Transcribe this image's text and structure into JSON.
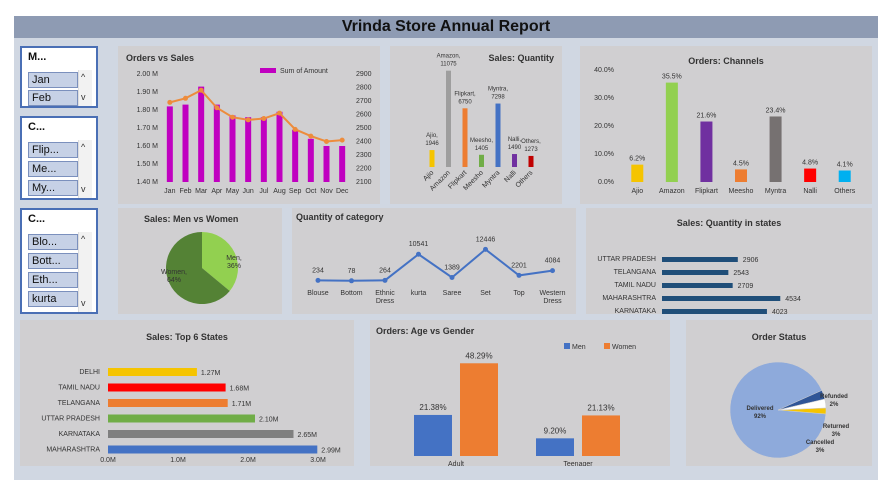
{
  "title": "Vrinda Store Annual Report",
  "slicers": [
    {
      "header": "M...",
      "items": [
        "Jan",
        "Feb"
      ]
    },
    {
      "header": "C...",
      "items": [
        "Flip...",
        "Me...",
        "My..."
      ]
    },
    {
      "header": "C...",
      "items": [
        "Blo...",
        "Bott...",
        "Eth...",
        "kurta"
      ]
    }
  ],
  "chart_data": [
    {
      "id": "orders_vs_sales",
      "type": "bar",
      "title": "Orders vs Sales",
      "legend": "Sum of Amount",
      "legend_position": "top-right",
      "categories": [
        "Jan",
        "Feb",
        "Mar",
        "Apr",
        "May",
        "Jun",
        "Jul",
        "Aug",
        "Sep",
        "Oct",
        "Nov",
        "Dec"
      ],
      "series": [
        {
          "name": "Sum of Amount",
          "type": "bar",
          "values": [
            1.82,
            1.83,
            1.93,
            1.83,
            1.77,
            1.76,
            1.76,
            1.79,
            1.69,
            1.64,
            1.6,
            1.6
          ]
        },
        {
          "type": "line",
          "values": [
            2690,
            2720,
            2780,
            2650,
            2580,
            2560,
            2570,
            2610,
            2490,
            2440,
            2400,
            2410
          ]
        }
      ],
      "y_ticks": [
        "2.00 M",
        "1.90 M",
        "1.80 M",
        "1.70 M",
        "1.60 M",
        "1.50 M",
        "1.40 M"
      ],
      "ylim": [
        1.4,
        2.0
      ],
      "y2_ticks": [
        "2900",
        "2800",
        "2700",
        "2600",
        "2500",
        "2400",
        "2300",
        "2200",
        "2100"
      ],
      "y2lim": [
        2100,
        2900
      ],
      "colors": {
        "bar": "#c000c0",
        "line": "#ed8c3c"
      }
    },
    {
      "id": "sales_quantity",
      "type": "bar",
      "title": "Sales: Quantity",
      "categories": [
        "Ajio",
        "Amazon",
        "Flipkart",
        "Meesho",
        "Myntra",
        "Nalli",
        "Others"
      ],
      "values": [
        1946,
        11075,
        6750,
        1405,
        7298,
        1490,
        1273
      ],
      "labels": [
        [
          "Ajio,",
          "1946"
        ],
        [
          "Amazon,",
          "11075"
        ],
        [
          "Flipkart,",
          "6750"
        ],
        [
          "Meesho,",
          "1405"
        ],
        [
          "Myntra,",
          "7298"
        ],
        [
          "Nalli,",
          "1490"
        ],
        [
          "Others,",
          "1273"
        ]
      ],
      "ylim": [
        0,
        11500
      ],
      "colors": [
        "#f5c400",
        "#9e9e9e",
        "#ed7d31",
        "#70ad47",
        "#4472c4",
        "#7030a0",
        "#c00000"
      ]
    },
    {
      "id": "orders_channels",
      "type": "bar",
      "title": "Orders: Channels",
      "categories": [
        "Ajio",
        "Amazon",
        "Flipkart",
        "Meesho",
        "Myntra",
        "Nalli",
        "Others"
      ],
      "values": [
        6.2,
        35.5,
        21.6,
        4.5,
        23.4,
        4.8,
        4.1
      ],
      "labels": [
        "6.2%",
        "35.5%",
        "21.6%",
        "4.5%",
        "23.4%",
        "4.8%",
        "4.1%"
      ],
      "y_ticks": [
        "40.0%",
        "30.0%",
        "20.0%",
        "10.0%",
        "0.0%"
      ],
      "ylim": [
        0,
        40
      ],
      "colors": [
        "#f5c400",
        "#92d050",
        "#7030a0",
        "#ed7d31",
        "#767171",
        "#ff0000",
        "#00b0f0"
      ]
    },
    {
      "id": "men_vs_women",
      "type": "pie",
      "title": "Sales: Men vs Women",
      "categories": [
        "Men",
        "Women"
      ],
      "values": [
        36,
        64
      ],
      "labels": [
        [
          "Men,",
          "36%"
        ],
        [
          "Women,",
          "64%"
        ]
      ],
      "colors": [
        "#92d050",
        "#548235"
      ]
    },
    {
      "id": "quantity_category",
      "type": "line",
      "title": "Quantity of category",
      "categories": [
        [
          "Blouse"
        ],
        [
          "Bottom"
        ],
        [
          "Ethnic",
          "Dress"
        ],
        [
          "kurta"
        ],
        [
          "Saree"
        ],
        [
          "Set"
        ],
        [
          "Top"
        ],
        [
          "Western",
          "Dress"
        ]
      ],
      "values": [
        234,
        78,
        264,
        10541,
        1389,
        12446,
        2201,
        4084
      ],
      "labels": [
        "234",
        "78",
        "264",
        "10541",
        "1389",
        "12446",
        "2201",
        "4084"
      ],
      "ylim": [
        0,
        13000
      ],
      "colors": {
        "line": "#4472c4"
      }
    },
    {
      "id": "quantity_states",
      "type": "bar",
      "orientation": "horizontal",
      "title": "Sales: Quantity in states",
      "categories": [
        "UTTAR PRADESH",
        "TELANGANA",
        "TAMIL NADU",
        "MAHARASHTRA",
        "KARNATAKA"
      ],
      "values": [
        2906,
        2543,
        2709,
        4534,
        4023
      ],
      "labels": [
        "2906",
        "2543",
        "2709",
        "4534",
        "4023"
      ],
      "xlim": [
        0,
        4600
      ],
      "colors": {
        "bar": "#1f4e79"
      }
    },
    {
      "id": "top_states",
      "type": "bar",
      "orientation": "horizontal",
      "title": "Sales: Top 6 States",
      "categories": [
        "DELHI",
        "TAMIL NADU",
        "TELANGANA",
        "UTTAR PRADESH",
        "KARNATAKA",
        "MAHARASHTRA"
      ],
      "values": [
        1.27,
        1.68,
        1.71,
        2.1,
        2.65,
        2.99
      ],
      "labels": [
        "1.27M",
        "1.68M",
        "1.71M",
        "2.10M",
        "2.65M",
        "2.99M"
      ],
      "x_ticks": [
        "0.0M",
        "1.0M",
        "2.0M",
        "3.0M"
      ],
      "xlim": [
        0,
        3.0
      ],
      "colors": [
        "#f5c400",
        "#ff0000",
        "#ed7d31",
        "#70ad47",
        "#7f7f7f",
        "#4472c4"
      ]
    },
    {
      "id": "age_gender",
      "type": "bar",
      "title": "Orders: Age vs Gender",
      "categories": [
        "Adult",
        "Teenager"
      ],
      "series": [
        {
          "name": "Men",
          "values": [
            21.38,
            9.2
          ],
          "labels": [
            "21.38%",
            "9.20%"
          ]
        },
        {
          "name": "Women",
          "values": [
            48.29,
            21.13
          ],
          "labels": [
            "48.29%",
            "21.13%"
          ]
        }
      ],
      "ylim": [
        0,
        50
      ],
      "legend_position": "top-right",
      "colors": [
        "#4472c4",
        "#ed7d31"
      ]
    },
    {
      "id": "order_status",
      "type": "pie",
      "title": "Order Status",
      "categories": [
        "Delivered",
        "Refunded",
        "Returned",
        "Cancelled"
      ],
      "values": [
        92,
        2,
        3,
        3
      ],
      "labels": [
        [
          "Delivered",
          "92%"
        ],
        [
          "Refunded",
          "2%"
        ],
        [
          "Returned",
          "3%"
        ],
        [
          "Cancelled",
          "3%"
        ]
      ],
      "colors": [
        "#8eaadb",
        "#f5c400",
        "#ffffff",
        "#2f5597"
      ]
    }
  ]
}
